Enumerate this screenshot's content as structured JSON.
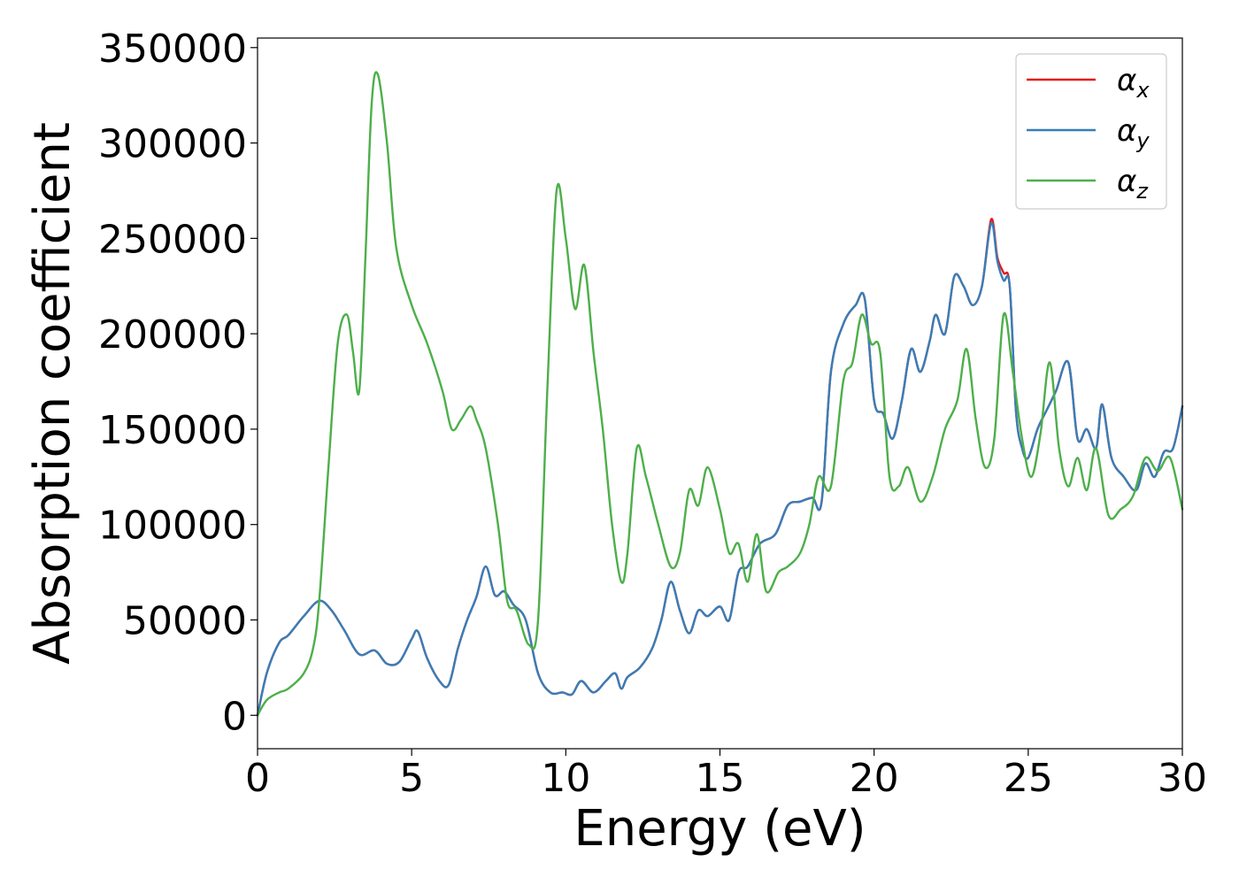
{
  "chart_data": {
    "type": "line",
    "title": "",
    "xlabel": "Energy (eV)",
    "ylabel": "Absorption coefficient",
    "xlim": [
      0,
      30
    ],
    "ylim": [
      -17500,
      355000
    ],
    "x_ticks": [
      "0",
      "5",
      "10",
      "15",
      "20",
      "25",
      "30"
    ],
    "y_ticks": [
      "0",
      "50000",
      "100000",
      "150000",
      "200000",
      "250000",
      "300000",
      "350000"
    ],
    "x_tick_values": [
      0,
      5,
      10,
      15,
      20,
      25,
      30
    ],
    "y_tick_values": [
      0,
      50000,
      100000,
      150000,
      200000,
      250000,
      300000,
      350000
    ],
    "grid": false,
    "legend_position": "top-right",
    "series": [
      {
        "name": "α_x",
        "label_main": "α",
        "label_sub": "x",
        "color": "#e41a1c",
        "x": [
          0,
          0.3,
          0.7,
          1.0,
          1.5,
          2.0,
          2.4,
          2.8,
          3.3,
          3.8,
          4.2,
          4.6,
          5.0,
          5.2,
          5.5,
          5.9,
          6.2,
          6.5,
          6.8,
          7.1,
          7.4,
          7.7,
          8.0,
          8.3,
          8.7,
          9.1,
          9.5,
          9.9,
          10.2,
          10.5,
          10.9,
          11.3,
          11.6,
          11.8,
          12.0,
          12.4,
          12.8,
          13.1,
          13.4,
          13.7,
          14.0,
          14.3,
          14.6,
          15.0,
          15.3,
          15.6,
          15.9,
          16.3,
          16.8,
          17.2,
          17.6,
          18.0,
          18.3,
          18.6,
          19.0,
          19.4,
          19.7,
          20.0,
          20.3,
          20.6,
          20.9,
          21.2,
          21.5,
          21.8,
          22.0,
          22.3,
          22.6,
          22.9,
          23.2,
          23.5,
          23.8,
          24.0,
          24.2,
          24.4,
          24.6,
          24.8,
          25.0,
          25.3,
          25.6,
          25.9,
          26.3,
          26.6,
          26.9,
          27.2,
          27.4,
          27.7,
          28.1,
          28.5,
          28.8,
          29.1,
          29.4,
          29.7,
          30.0
        ],
        "values": [
          0,
          22000,
          38000,
          42000,
          52000,
          60000,
          55000,
          45000,
          32000,
          34000,
          27000,
          28000,
          40000,
          44000,
          30000,
          18000,
          16000,
          35000,
          50000,
          62000,
          78000,
          63000,
          65000,
          58000,
          50000,
          22000,
          12000,
          12000,
          11000,
          18000,
          12000,
          18000,
          22000,
          14000,
          20000,
          25000,
          35000,
          50000,
          70000,
          55000,
          43000,
          55000,
          52000,
          57000,
          50000,
          75000,
          78000,
          90000,
          95000,
          110000,
          112000,
          114000,
          112000,
          180000,
          205000,
          215000,
          218000,
          165000,
          158000,
          145000,
          165000,
          192000,
          180000,
          196000,
          210000,
          200000,
          230000,
          225000,
          215000,
          225000,
          260000,
          240000,
          232000,
          225000,
          160000,
          140000,
          135000,
          150000,
          160000,
          170000,
          185000,
          145000,
          150000,
          140000,
          163000,
          135000,
          125000,
          118000,
          132000,
          125000,
          138000,
          140000,
          162000
        ]
      },
      {
        "name": "α_y",
        "label_main": "α",
        "label_sub": "y",
        "color": "#377eb8",
        "x": [
          0,
          0.3,
          0.7,
          1.0,
          1.5,
          2.0,
          2.4,
          2.8,
          3.3,
          3.8,
          4.2,
          4.6,
          5.0,
          5.2,
          5.5,
          5.9,
          6.2,
          6.5,
          6.8,
          7.1,
          7.4,
          7.7,
          8.0,
          8.3,
          8.7,
          9.1,
          9.5,
          9.9,
          10.2,
          10.5,
          10.9,
          11.3,
          11.6,
          11.8,
          12.0,
          12.4,
          12.8,
          13.1,
          13.4,
          13.7,
          14.0,
          14.3,
          14.6,
          15.0,
          15.3,
          15.6,
          15.9,
          16.3,
          16.8,
          17.2,
          17.6,
          18.0,
          18.3,
          18.6,
          19.0,
          19.4,
          19.7,
          20.0,
          20.3,
          20.6,
          20.9,
          21.2,
          21.5,
          21.8,
          22.0,
          22.3,
          22.6,
          22.9,
          23.2,
          23.5,
          23.8,
          24.0,
          24.2,
          24.4,
          24.6,
          24.8,
          25.0,
          25.3,
          25.6,
          25.9,
          26.3,
          26.6,
          26.9,
          27.2,
          27.4,
          27.7,
          28.1,
          28.5,
          28.8,
          29.1,
          29.4,
          29.7,
          30.0
        ],
        "values": [
          0,
          22000,
          38000,
          42000,
          52000,
          60000,
          55000,
          45000,
          32000,
          34000,
          27000,
          28000,
          40000,
          44000,
          30000,
          18000,
          16000,
          35000,
          50000,
          62000,
          78000,
          63000,
          65000,
          58000,
          50000,
          22000,
          12000,
          12000,
          11000,
          18000,
          12000,
          18000,
          22000,
          14000,
          20000,
          25000,
          35000,
          50000,
          70000,
          55000,
          43000,
          55000,
          52000,
          57000,
          50000,
          75000,
          78000,
          90000,
          95000,
          110000,
          112000,
          114000,
          112000,
          180000,
          205000,
          215000,
          218000,
          165000,
          158000,
          145000,
          165000,
          192000,
          180000,
          196000,
          210000,
          200000,
          230000,
          225000,
          215000,
          225000,
          258000,
          238000,
          228000,
          225000,
          160000,
          140000,
          135000,
          150000,
          160000,
          170000,
          185000,
          145000,
          150000,
          140000,
          163000,
          135000,
          125000,
          118000,
          132000,
          125000,
          138000,
          140000,
          162000
        ]
      },
      {
        "name": "α_z",
        "label_main": "α",
        "label_sub": "z",
        "color": "#4daf4a",
        "x": [
          0,
          0.3,
          0.7,
          1.0,
          1.5,
          1.8,
          2.0,
          2.3,
          2.6,
          2.9,
          3.1,
          3.3,
          3.5,
          3.7,
          3.9,
          4.2,
          4.5,
          5.0,
          5.5,
          6.0,
          6.3,
          6.6,
          6.9,
          7.1,
          7.4,
          7.8,
          8.1,
          8.4,
          8.8,
          9.1,
          9.4,
          9.7,
          10.0,
          10.3,
          10.6,
          10.9,
          11.2,
          11.5,
          11.8,
          12.0,
          12.3,
          12.6,
          13.0,
          13.4,
          13.7,
          14.0,
          14.3,
          14.6,
          15.0,
          15.3,
          15.6,
          15.9,
          16.2,
          16.5,
          16.9,
          17.2,
          17.6,
          17.9,
          18.2,
          18.6,
          19.0,
          19.3,
          19.6,
          19.9,
          20.2,
          20.5,
          20.8,
          21.1,
          21.5,
          21.9,
          22.3,
          22.7,
          23.0,
          23.3,
          23.6,
          23.9,
          24.2,
          24.5,
          24.8,
          25.1,
          25.4,
          25.7,
          26.0,
          26.3,
          26.6,
          26.9,
          27.2,
          27.6,
          28.0,
          28.4,
          28.8,
          29.2,
          29.6,
          30.0
        ],
        "values": [
          0,
          8000,
          12000,
          14000,
          22000,
          35000,
          60000,
          130000,
          195000,
          210000,
          190000,
          170000,
          240000,
          320000,
          336000,
          300000,
          245000,
          215000,
          195000,
          170000,
          150000,
          155000,
          162000,
          155000,
          140000,
          100000,
          60000,
          55000,
          37000,
          50000,
          170000,
          275000,
          250000,
          213000,
          236000,
          190000,
          150000,
          100000,
          70000,
          85000,
          140000,
          125000,
          100000,
          78000,
          85000,
          118000,
          110000,
          130000,
          108000,
          85000,
          90000,
          70000,
          95000,
          65000,
          75000,
          78000,
          85000,
          100000,
          125000,
          120000,
          175000,
          185000,
          210000,
          195000,
          190000,
          125000,
          120000,
          130000,
          112000,
          125000,
          150000,
          165000,
          192000,
          155000,
          130000,
          145000,
          210000,
          180000,
          145000,
          125000,
          148000,
          185000,
          140000,
          120000,
          135000,
          118000,
          140000,
          105000,
          108000,
          115000,
          135000,
          128000,
          135000,
          108000
        ]
      }
    ]
  }
}
